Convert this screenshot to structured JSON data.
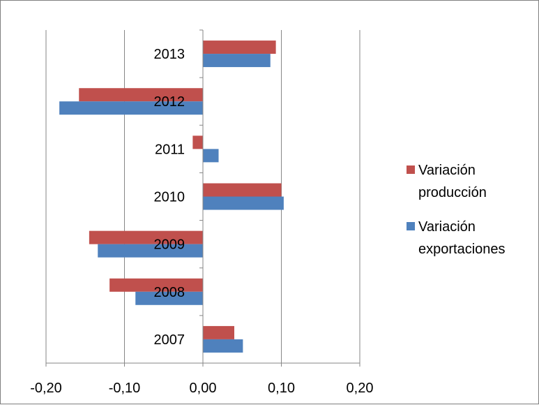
{
  "chart_data": {
    "type": "bar",
    "orientation": "horizontal",
    "title": "",
    "xlabel": "",
    "ylabel": "",
    "categories": [
      "2013",
      "2012",
      "2011",
      "2010",
      "2009",
      "2008",
      "2007"
    ],
    "series": [
      {
        "name": "Variación producción",
        "legend_lines": [
          "Variación",
          "producción"
        ],
        "color": "#c0504d",
        "values": [
          0.093,
          -0.158,
          -0.013,
          0.1,
          -0.145,
          -0.119,
          0.04
        ]
      },
      {
        "name": "Variación exportaciones",
        "legend_lines": [
          "Variación",
          "exportaciones"
        ],
        "color": "#4f81bd",
        "values": [
          0.086,
          -0.183,
          0.02,
          0.103,
          -0.134,
          -0.086,
          0.051
        ]
      }
    ],
    "xlim": [
      -0.2,
      0.2
    ],
    "xticks": [
      -0.2,
      -0.1,
      0.0,
      0.1,
      0.2
    ],
    "xtick_labels": [
      "-0,20",
      "-0,10",
      "0,00",
      "0,10",
      "0,20"
    ],
    "grid": "vertical",
    "legend_position": "right"
  }
}
